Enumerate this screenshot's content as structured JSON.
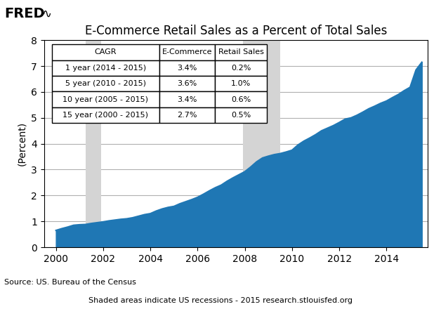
{
  "chart_data": {
    "type": "area",
    "title": "E-Commerce Retail Sales as a Percent of Total Sales",
    "y_label": "(Percent)",
    "x": [
      2000.0,
      2000.25,
      2000.5,
      2000.75,
      2001.0,
      2001.25,
      2001.5,
      2001.75,
      2002.0,
      2002.25,
      2002.5,
      2002.75,
      2003.0,
      2003.25,
      2003.5,
      2003.75,
      2004.0,
      2004.25,
      2004.5,
      2004.75,
      2005.0,
      2005.25,
      2005.5,
      2005.75,
      2006.0,
      2006.25,
      2006.5,
      2006.75,
      2007.0,
      2007.25,
      2007.5,
      2007.75,
      2008.0,
      2008.25,
      2008.5,
      2008.75,
      2009.0,
      2009.25,
      2009.5,
      2009.75,
      2010.0,
      2010.25,
      2010.5,
      2010.75,
      2011.0,
      2011.25,
      2011.5,
      2011.75,
      2012.0,
      2012.25,
      2012.5,
      2012.75,
      2013.0,
      2013.25,
      2013.5,
      2013.75,
      2014.0,
      2014.25,
      2014.5,
      2014.75,
      2015.0,
      2015.25,
      2015.5
    ],
    "values": [
      0.65,
      0.72,
      0.78,
      0.85,
      0.87,
      0.88,
      0.92,
      0.95,
      0.98,
      1.02,
      1.05,
      1.08,
      1.1,
      1.14,
      1.2,
      1.26,
      1.3,
      1.4,
      1.48,
      1.54,
      1.58,
      1.68,
      1.76,
      1.84,
      1.93,
      2.05,
      2.18,
      2.3,
      2.4,
      2.55,
      2.68,
      2.8,
      2.92,
      3.1,
      3.3,
      3.45,
      3.52,
      3.58,
      3.62,
      3.68,
      3.75,
      3.95,
      4.1,
      4.22,
      4.35,
      4.5,
      4.6,
      4.7,
      4.82,
      4.95,
      5.0,
      5.1,
      5.22,
      5.35,
      5.45,
      5.56,
      5.65,
      5.78,
      5.9,
      6.05,
      6.18,
      6.85,
      7.15
    ],
    "recessions": [
      [
        2001.25,
        2001.92
      ],
      [
        2007.92,
        2009.5
      ]
    ],
    "recession_color": "#d4d4d4",
    "xlim": [
      1999.5,
      2015.75
    ],
    "xticks": [
      2000,
      2002,
      2004,
      2006,
      2008,
      2010,
      2012,
      2014
    ],
    "ylim": [
      0,
      8
    ],
    "yticks": [
      0,
      1,
      2,
      3,
      4,
      5,
      6,
      7,
      8
    ],
    "grid": "y",
    "table": {
      "header": [
        "CAGR",
        "E-Commerce",
        "Retail Sales"
      ],
      "rows": [
        [
          "1 year (2014 - 2015)",
          "3.4%",
          "0.2%"
        ],
        [
          "5 year (2010 - 2015)",
          "3.6%",
          "1.0%"
        ],
        [
          "10 year (2005 - 2015)",
          "3.4%",
          "0.6%"
        ],
        [
          "15 year (2000 - 2015)",
          "2.7%",
          "0.5%"
        ]
      ]
    },
    "annotations": {
      "logo": "FRED",
      "logo_icon": "∿",
      "source": "Source: US. Bureau of the Census",
      "footer": "Shaded areas indicate US recessions - 2015 research.stlouisfed.org"
    }
  }
}
